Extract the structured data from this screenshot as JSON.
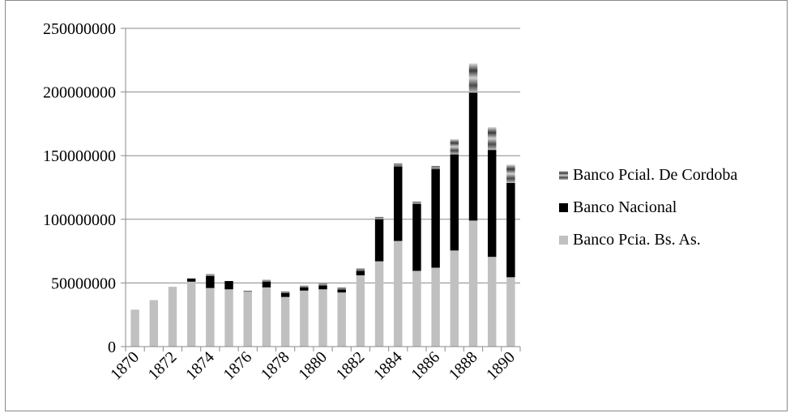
{
  "chart_data": {
    "type": "bar",
    "stacked": true,
    "title": "",
    "xlabel": "",
    "ylabel": "",
    "ylim": [
      0,
      250000000
    ],
    "yticks": [
      0,
      50000000,
      100000000,
      150000000,
      200000000,
      250000000
    ],
    "ytick_labels": [
      "0",
      "50000000",
      "100000000",
      "150000000",
      "200000000",
      "250000000"
    ],
    "categories": [
      "1870",
      "1871",
      "1872",
      "1873",
      "1874",
      "1875",
      "1876",
      "1877",
      "1878",
      "1879",
      "1880",
      "1881",
      "1882",
      "1883",
      "1884",
      "1885",
      "1886",
      "1887",
      "1888",
      "1889",
      "1890"
    ],
    "xtick_labels": [
      "1870",
      "1872",
      "1874",
      "1876",
      "1878",
      "1880",
      "1882",
      "1884",
      "1886",
      "1888",
      "1890"
    ],
    "grid": "horizontal",
    "legend_position": "right",
    "series": [
      {
        "name": "Banco Pcia. Bs. As.",
        "color": "#c0c0c0",
        "values": [
          29000000,
          36500000,
          47000000,
          51000000,
          46000000,
          45000000,
          43000000,
          46500000,
          39000000,
          44000000,
          45000000,
          42500000,
          56000000,
          67000000,
          83000000,
          59500000,
          62000000,
          75500000,
          99000000,
          70500000,
          54500000
        ]
      },
      {
        "name": "Banco Nacional",
        "color": "#000000",
        "values": [
          0,
          0,
          0,
          2500000,
          9500000,
          6500000,
          0,
          4500000,
          3000000,
          2500000,
          3000000,
          2500000,
          3500000,
          33000000,
          58500000,
          52500000,
          77500000,
          75500000,
          100500000,
          84000000,
          74000000
        ]
      },
      {
        "name": "Banco Pcial. De Cordoba",
        "color": "#8c8c8c",
        "values": [
          0,
          0,
          0,
          0,
          1500000,
          0,
          1000000,
          1500000,
          1500000,
          1500000,
          1500000,
          1500000,
          2000000,
          2000000,
          2500000,
          2000000,
          2500000,
          12000000,
          23000000,
          18000000,
          14500000
        ]
      }
    ]
  }
}
